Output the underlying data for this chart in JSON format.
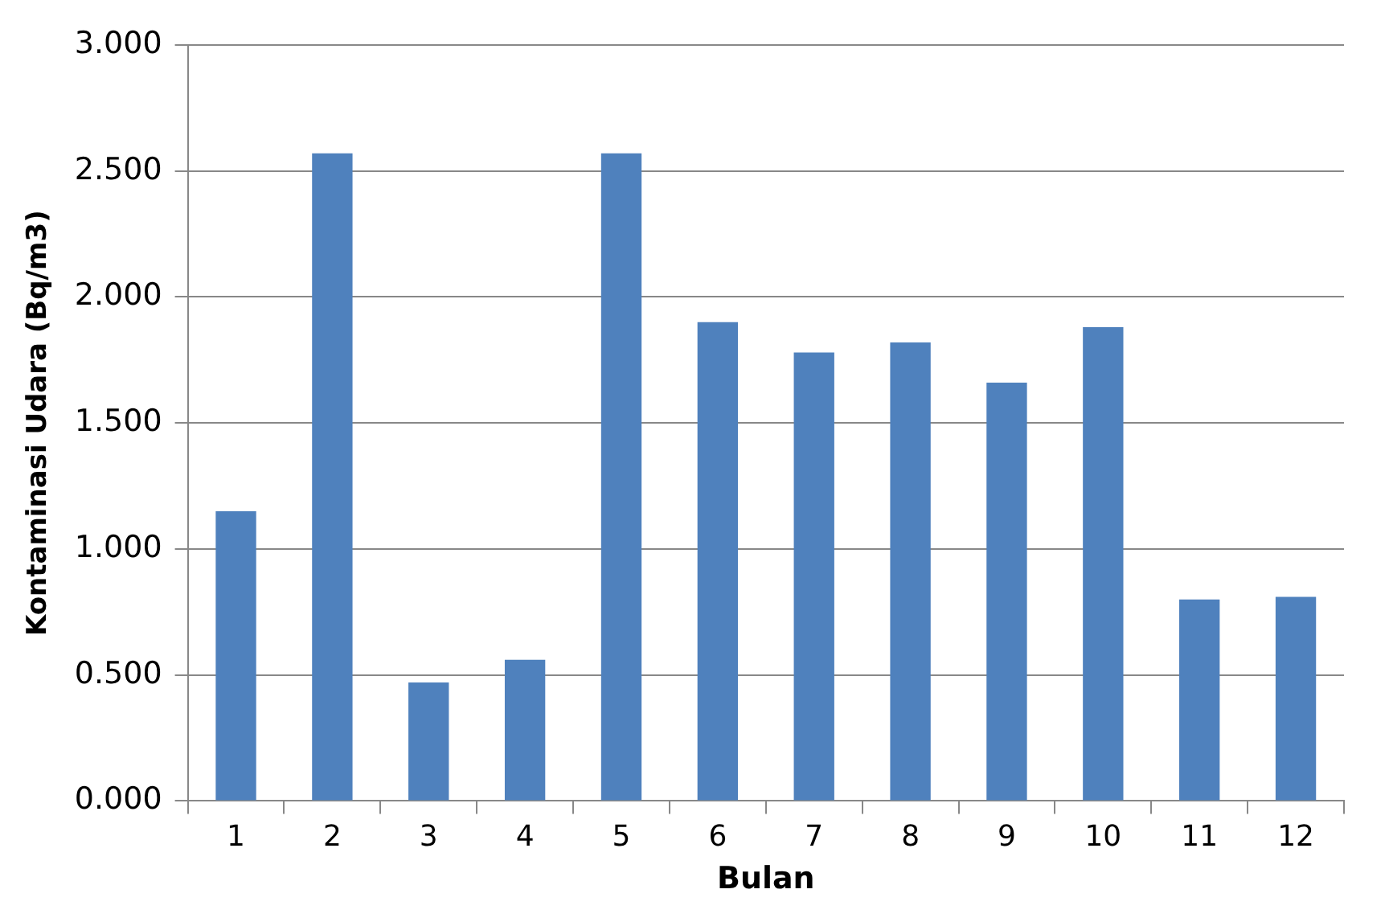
{
  "chart_data": {
    "type": "bar",
    "xlabel": "Bulan",
    "ylabel": "Kontaminasi Udara (Bq/m3)",
    "categories": [
      "1",
      "2",
      "3",
      "4",
      "5",
      "6",
      "7",
      "8",
      "9",
      "10",
      "11",
      "12"
    ],
    "values": [
      1.15,
      2.57,
      0.47,
      0.56,
      2.57,
      1.9,
      1.78,
      1.82,
      1.66,
      1.88,
      0.8,
      0.81
    ],
    "color": "#4f81bd",
    "ylim": [
      0,
      3
    ],
    "yticks": [
      {
        "value": 0,
        "label": "0.000"
      },
      {
        "value": 0.5,
        "label": "0.500"
      },
      {
        "value": 1,
        "label": "1.000"
      },
      {
        "value": 1.5,
        "label": "1.500"
      },
      {
        "value": 2,
        "label": "2.000"
      },
      {
        "value": 2.5,
        "label": "2.500"
      },
      {
        "value": 3,
        "label": "3.000"
      }
    ],
    "grid": "y",
    "legend": false
  }
}
